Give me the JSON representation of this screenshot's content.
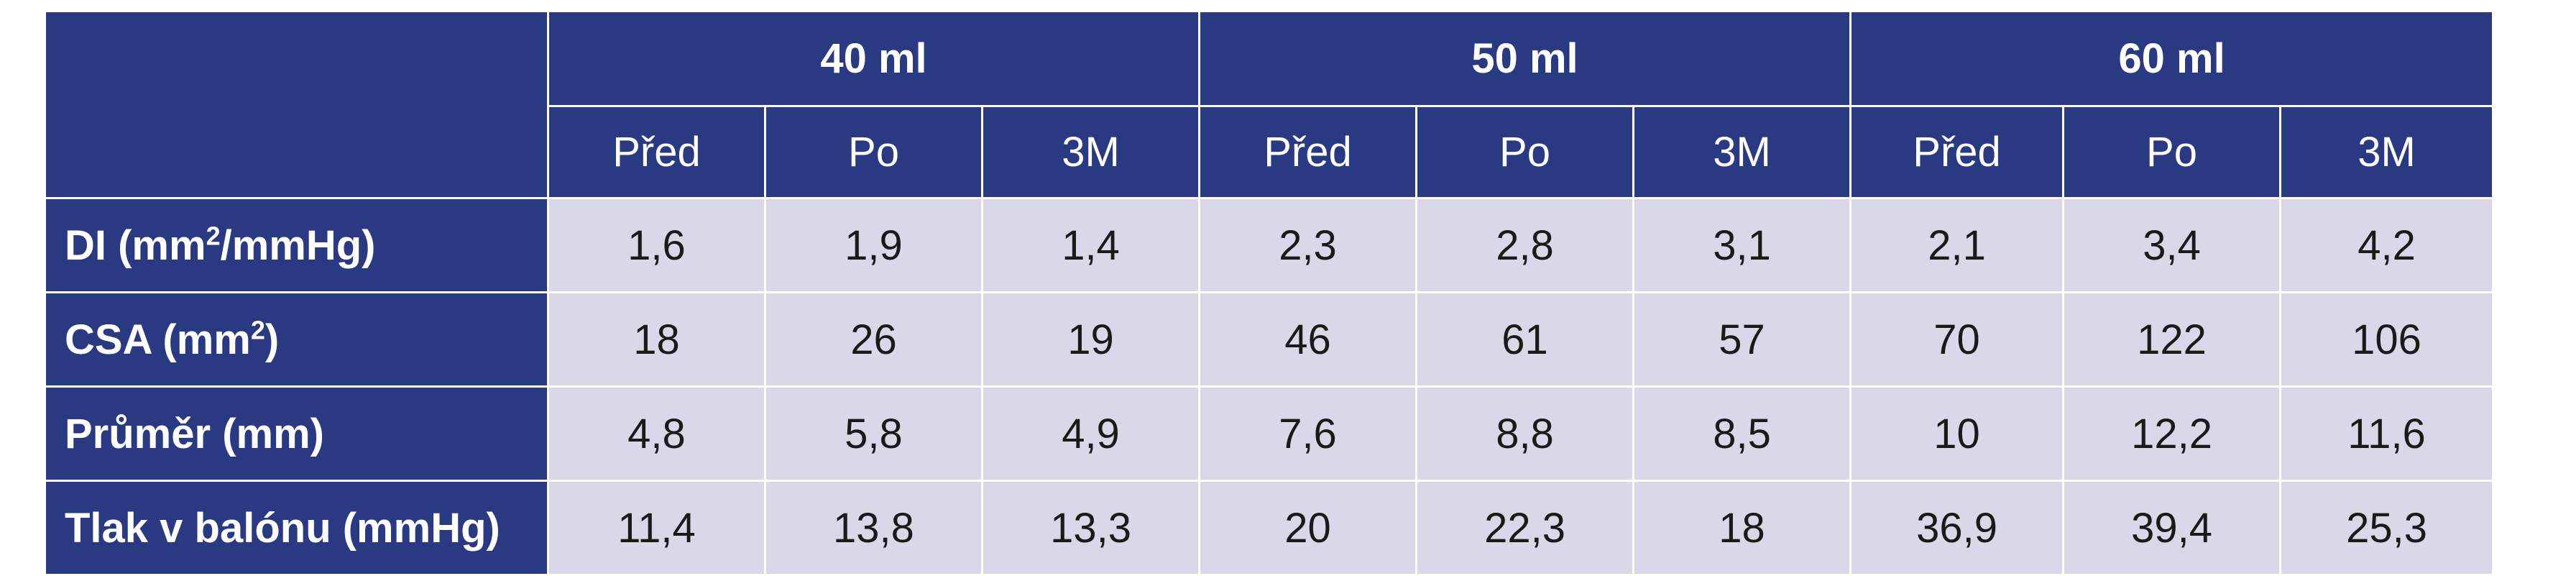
{
  "table": {
    "groups": [
      "40 ml",
      "50 ml",
      "60 ml"
    ],
    "subheaders": [
      "Před",
      "Po",
      "3M",
      "Před",
      "Po",
      "3M",
      "Před",
      "Po",
      "3M"
    ],
    "rows": [
      {
        "label_base": "DI (mm",
        "label_sup": "2",
        "label_rest": "/mmHg)",
        "values": [
          "1,6",
          "1,9",
          "1,4",
          "2,3",
          "2,8",
          "3,1",
          "2,1",
          "3,4",
          "4,2"
        ]
      },
      {
        "label_base": "CSA (mm",
        "label_sup": "2",
        "label_rest": ")",
        "values": [
          "18",
          "26",
          "19",
          "46",
          "61",
          "57",
          "70",
          "122",
          "106"
        ]
      },
      {
        "label_base": "Průměr (mm)",
        "label_sup": "",
        "label_rest": "",
        "values": [
          "4,8",
          "5,8",
          "4,9",
          "7,6",
          "8,8",
          "8,5",
          "10",
          "12,2",
          "11,6"
        ]
      },
      {
        "label_base": "Tlak v balónu (mmHg)",
        "label_sup": "",
        "label_rest": "",
        "values": [
          "11,4",
          "13,8",
          "13,3",
          "20",
          "22,3",
          "18",
          "36,9",
          "39,4",
          "25,3"
        ]
      }
    ]
  },
  "colors": {
    "header_bg": "#293a82",
    "cell_bg": "#d9d7e8"
  }
}
